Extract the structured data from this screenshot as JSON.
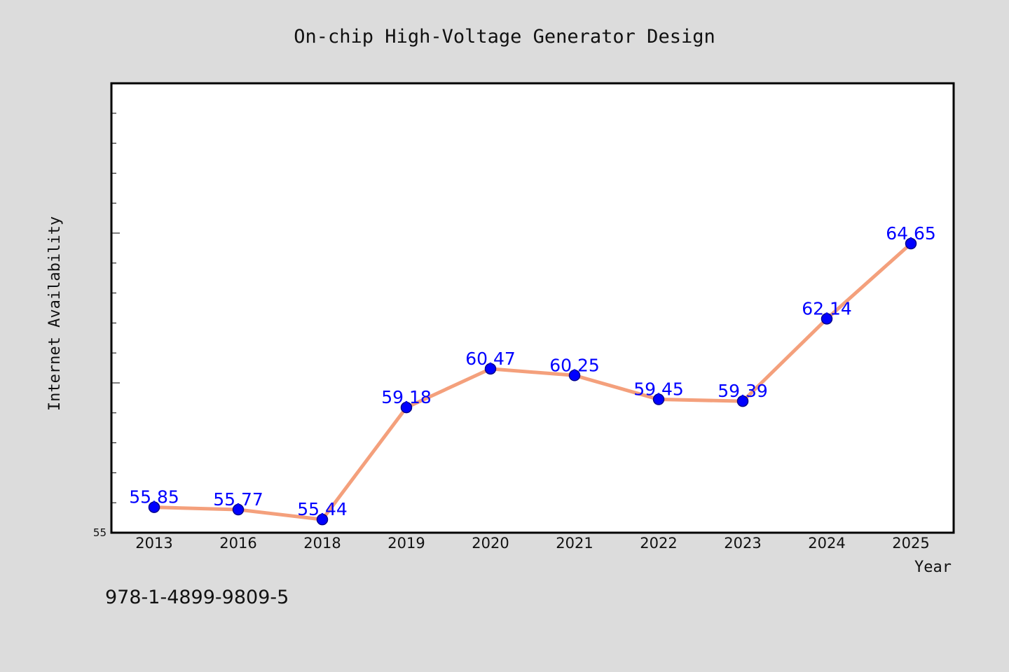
{
  "chart_data": {
    "type": "line",
    "title": "On-chip High-Voltage Generator Design",
    "xlabel": "Year",
    "ylabel": "Internet Availability",
    "categories": [
      "2013",
      "2016",
      "2018",
      "2019",
      "2020",
      "2021",
      "2022",
      "2023",
      "2024",
      "2025"
    ],
    "series": [
      {
        "values": [
          55.85,
          55.77,
          55.44,
          59.18,
          60.47,
          60.25,
          59.45,
          59.39,
          62.14,
          64.65
        ],
        "labels": [
          "55.85",
          "55.77",
          "55.44",
          "59.18",
          "60.47",
          "60.25",
          "59.45",
          "59.39",
          "62.14",
          "64.65"
        ]
      }
    ],
    "ylim": [
      55,
      70
    ],
    "y_tick_label": "55",
    "grid": false,
    "legend": "none",
    "colors": {
      "line": "#f4a07c",
      "marker": "#0000ff",
      "marker_edge": "#00008b",
      "data_label": "#0000ff",
      "plot_bg": "#ffffff",
      "page_bg": "#dcdcdc"
    }
  },
  "footer_text": "978-1-4899-9809-5"
}
